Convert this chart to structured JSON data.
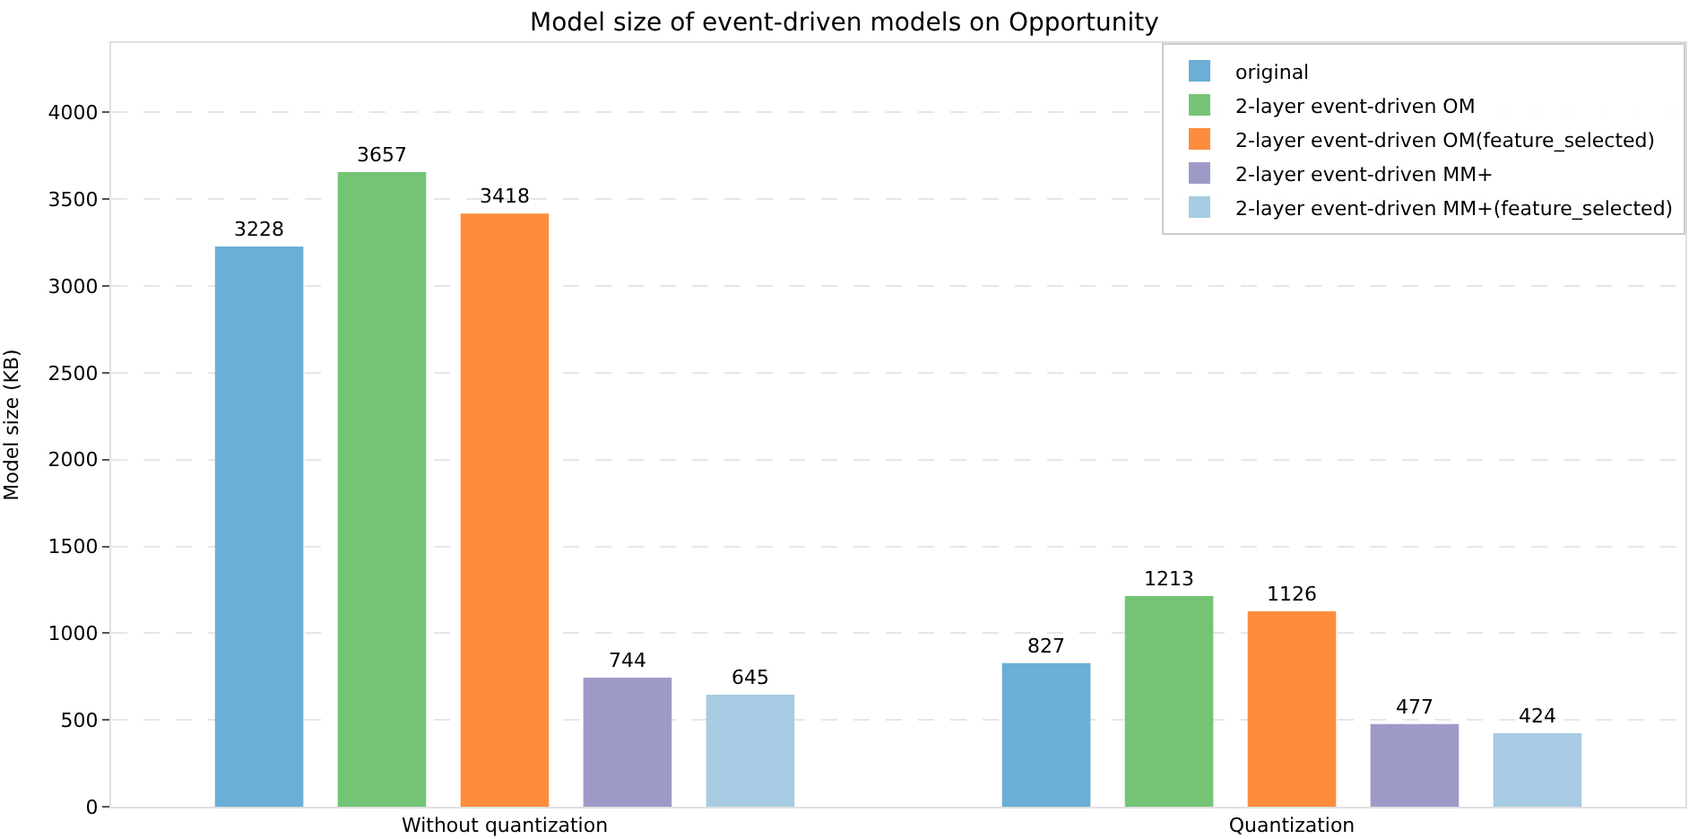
{
  "chart_data": {
    "type": "bar",
    "title": "Model size of event-driven models on Opportunity",
    "ylabel": "Model size (KB)",
    "categories": [
      "Without quantization",
      "Quantization"
    ],
    "series": [
      {
        "name": "original",
        "color": "#6baed6",
        "values": [
          3228,
          827
        ]
      },
      {
        "name": "2-layer event-driven OM",
        "color": "#74c476",
        "values": [
          3657,
          1213
        ]
      },
      {
        "name": "2-layer event-driven OM(feature_selected)",
        "color": "#fd8d3c",
        "values": [
          3418,
          1126
        ]
      },
      {
        "name": "2-layer event-driven MM+",
        "color": "#9e9ac8",
        "values": [
          744,
          477
        ]
      },
      {
        "name": "2-layer event-driven MM+(feature_selected)",
        "color": "#a6cbe3",
        "values": [
          645,
          424
        ]
      }
    ],
    "ylim": [
      0,
      4400
    ],
    "yticks": [
      0,
      500,
      1000,
      1500,
      2000,
      2500,
      3000,
      3500,
      4000
    ],
    "data_labels": true,
    "grid": "y",
    "legend": "top right"
  }
}
